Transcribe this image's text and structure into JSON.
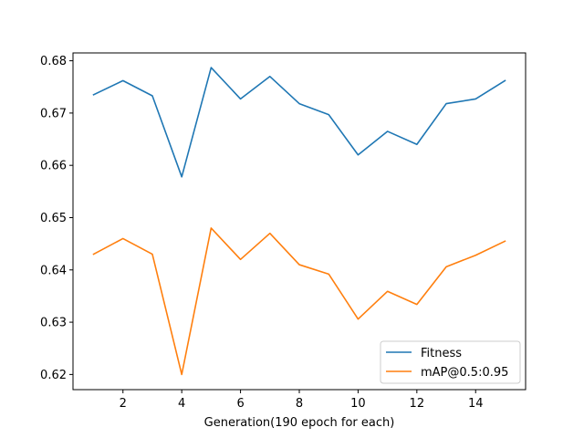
{
  "chart_data": {
    "type": "line",
    "title": "",
    "xlabel": "Generation(190 epoch for each)",
    "ylabel": "",
    "x": [
      1,
      2,
      3,
      4,
      5,
      6,
      7,
      8,
      9,
      10,
      11,
      12,
      13,
      14,
      15
    ],
    "series": [
      {
        "name": "Fitness",
        "color": "#1f77b4",
        "values": [
          0.6735,
          0.6762,
          0.6733,
          0.6578,
          0.6787,
          0.6727,
          0.677,
          0.6718,
          0.6697,
          0.662,
          0.6665,
          0.664,
          0.6718,
          0.6727,
          0.6762
        ]
      },
      {
        "name": "mAP@0.5:0.95",
        "color": "#ff7f0e",
        "values": [
          0.643,
          0.646,
          0.643,
          0.62,
          0.648,
          0.642,
          0.647,
          0.641,
          0.6392,
          0.6306,
          0.6359,
          0.6334,
          0.6406,
          0.6428,
          0.6455
        ]
      }
    ],
    "xlim": [
      0.3,
      15.7
    ],
    "ylim": [
      0.6171,
      0.6815
    ],
    "xticks": [
      2,
      4,
      6,
      8,
      10,
      12,
      14
    ],
    "xtick_labels": [
      "2",
      "4",
      "6",
      "8",
      "10",
      "12",
      "14"
    ],
    "yticks": [
      0.62,
      0.63,
      0.64,
      0.65,
      0.66,
      0.67,
      0.68
    ],
    "ytick_labels": [
      "0.62",
      "0.63",
      "0.64",
      "0.65",
      "0.66",
      "0.67",
      "0.68"
    ],
    "grid": false,
    "legend_position": "lower-right"
  }
}
